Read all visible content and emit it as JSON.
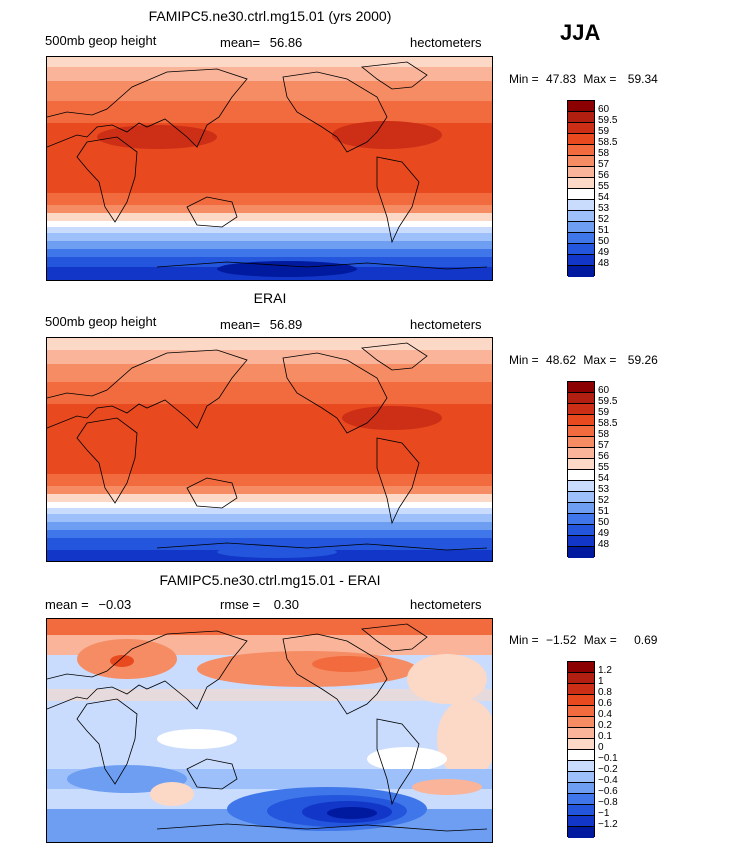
{
  "season": "JJA",
  "chart_data": [
    {
      "type": "heatmap",
      "title": "FAMIPC5.ne30.ctrl.mg15.01 (yrs 2000)",
      "variable": "500mb geop height",
      "mean_label": "mean=",
      "mean": "56.86",
      "units": "hectometers",
      "min_label": "Min =",
      "min": "47.83",
      "max_label": "Max =",
      "max": "59.34",
      "levels": [
        "60",
        "59.5",
        "59",
        "58.5",
        "58",
        "57",
        "56",
        "55",
        "54",
        "53",
        "52",
        "51",
        "50",
        "49",
        "48"
      ],
      "colors": [
        "#8b0000",
        "#b01f0f",
        "#cd2e16",
        "#e8491f",
        "#f26b3f",
        "#f68c63",
        "#f9b49a",
        "#fcd8c6",
        "#ffffff",
        "#c9dcfd",
        "#9dc0fa",
        "#6d9ef2",
        "#3f77ea",
        "#2356dc",
        "#1136c8",
        "#001a9f"
      ]
    },
    {
      "type": "heatmap",
      "title": "ERAI",
      "variable": "500mb geop height",
      "mean_label": "mean=",
      "mean": "56.89",
      "units": "hectometers",
      "min_label": "Min =",
      "min": "48.62",
      "max_label": "Max =",
      "max": "59.26",
      "levels": [
        "60",
        "59.5",
        "59",
        "58.5",
        "58",
        "57",
        "56",
        "55",
        "54",
        "53",
        "52",
        "51",
        "50",
        "49",
        "48"
      ],
      "colors": [
        "#8b0000",
        "#b01f0f",
        "#cd2e16",
        "#e8491f",
        "#f26b3f",
        "#f68c63",
        "#f9b49a",
        "#fcd8c6",
        "#ffffff",
        "#c9dcfd",
        "#9dc0fa",
        "#6d9ef2",
        "#3f77ea",
        "#2356dc",
        "#1136c8",
        "#001a9f"
      ]
    },
    {
      "type": "heatmap",
      "title": "FAMIPC5.ne30.ctrl.mg15.01 - ERAI",
      "mean_label": "mean =",
      "mean": "−0.03",
      "rmse_label": "rmse =",
      "rmse": "0.30",
      "units": "hectometers",
      "min_label": "Min =",
      "min": "−1.52",
      "max_label": "Max =",
      "max": "0.69",
      "levels": [
        "1.2",
        "1",
        "0.8",
        "0.6",
        "0.4",
        "0.2",
        "0.1",
        "0",
        "−0.1",
        "−0.2",
        "−0.4",
        "−0.6",
        "−0.8",
        "−1",
        "−1.2"
      ],
      "colors": [
        "#8b0000",
        "#b01f0f",
        "#cd2e16",
        "#e8491f",
        "#f26b3f",
        "#f68c63",
        "#f9b49a",
        "#fcd8c6",
        "#ffffff",
        "#c9dcfd",
        "#9dc0fa",
        "#6d9ef2",
        "#3f77ea",
        "#2356dc",
        "#1136c8",
        "#001a9f"
      ]
    }
  ]
}
